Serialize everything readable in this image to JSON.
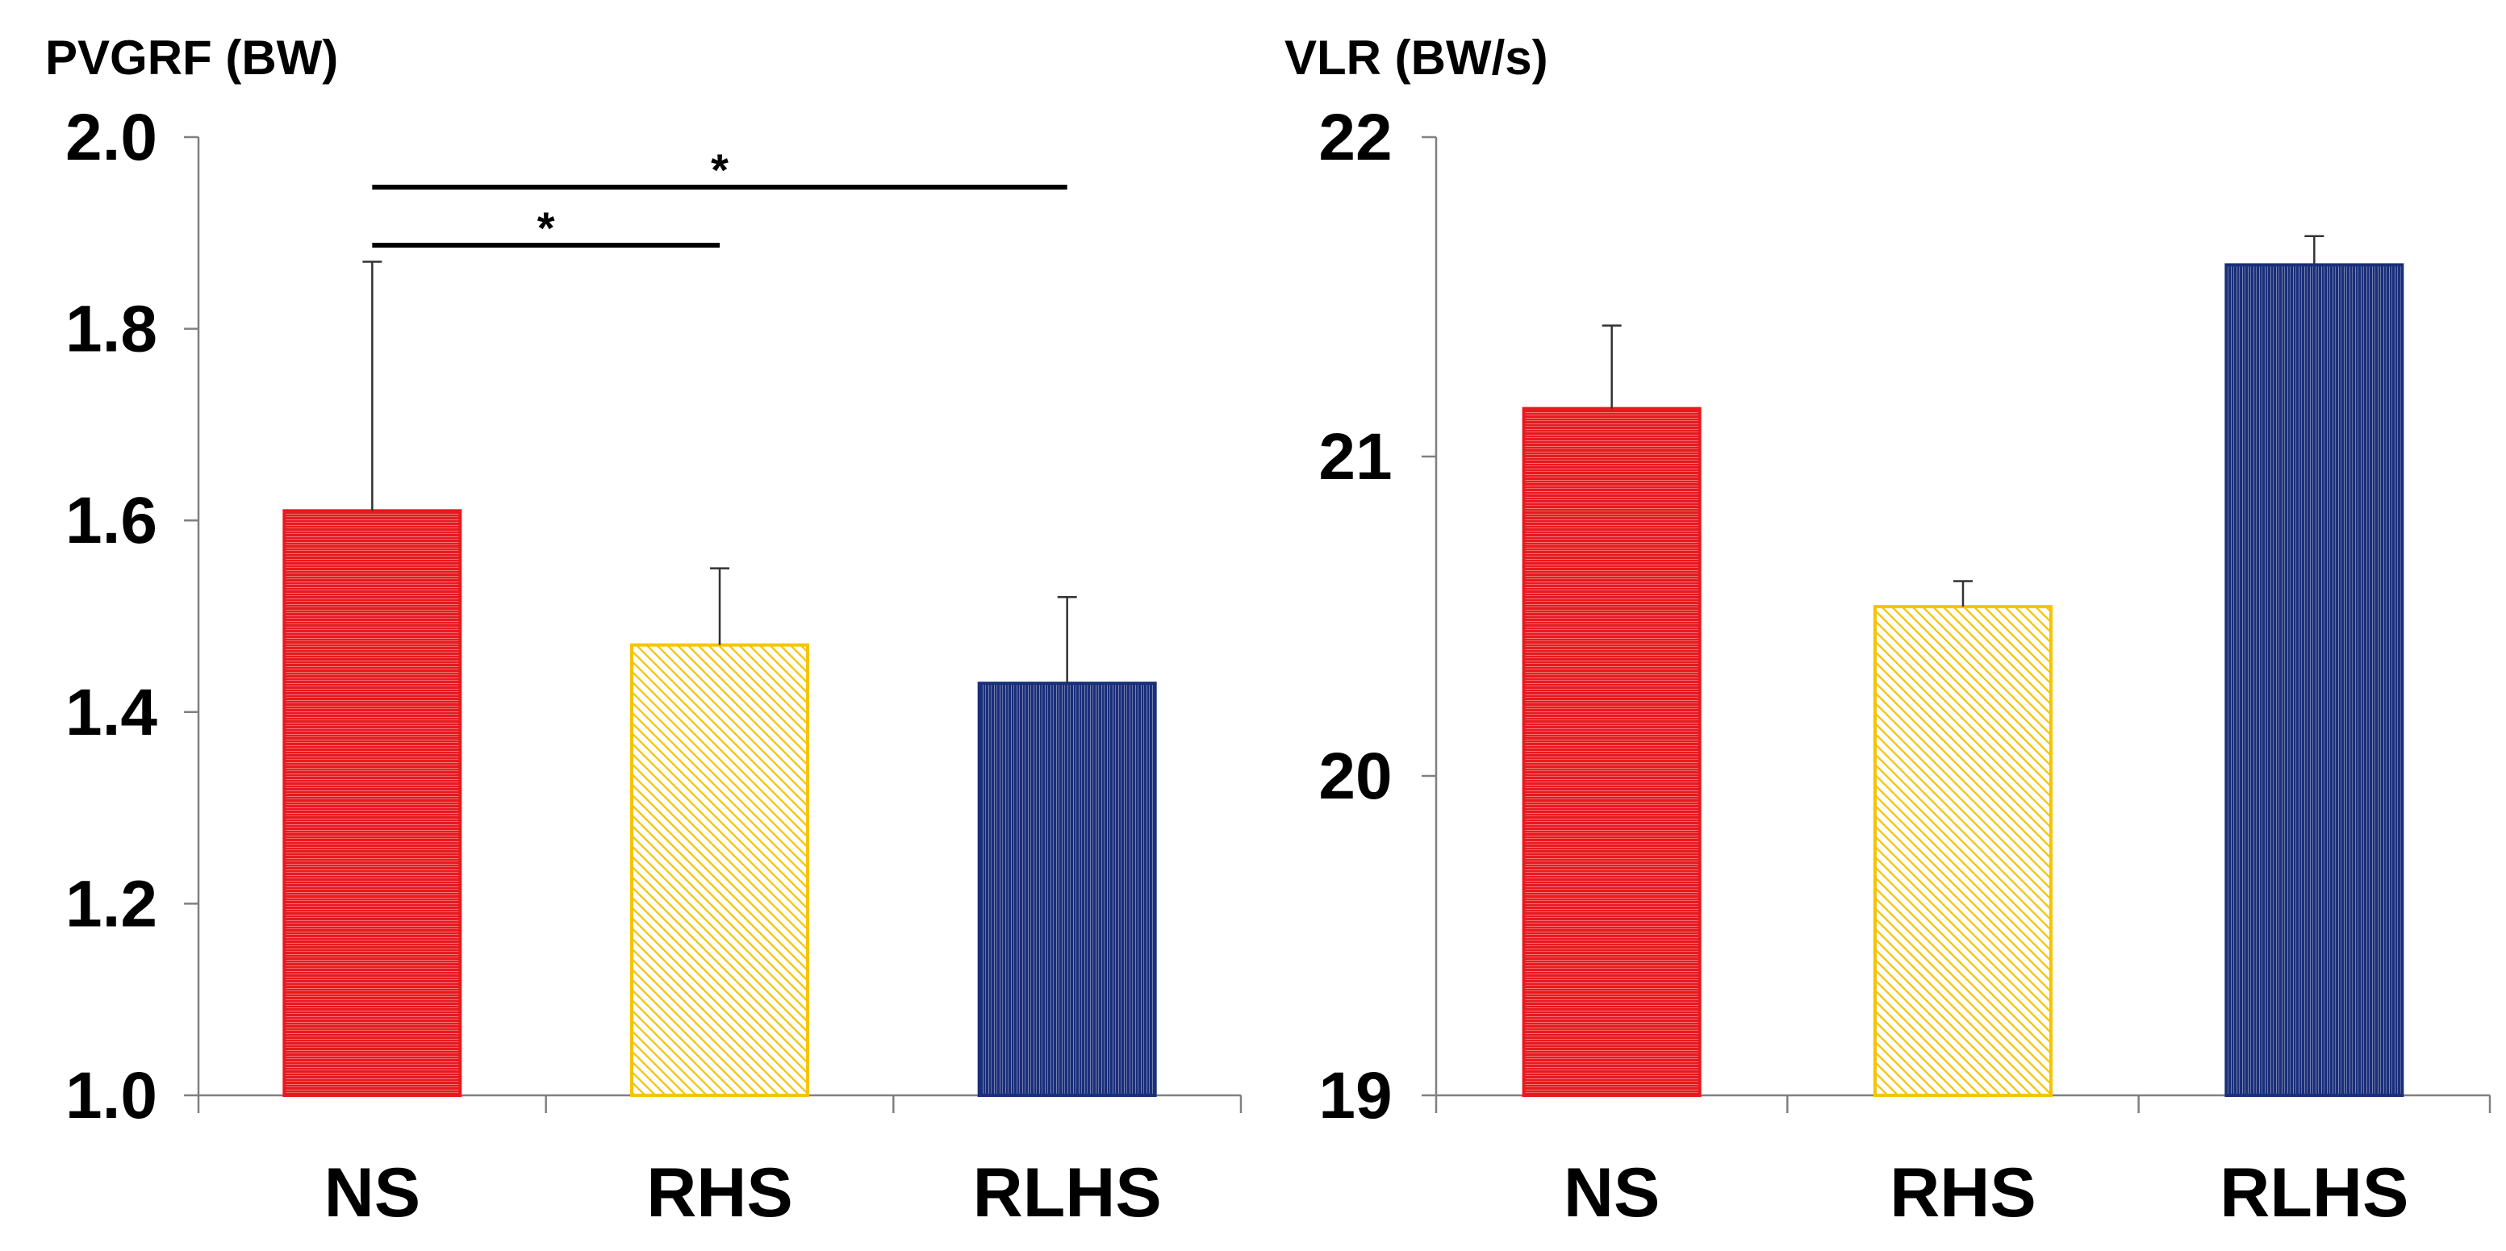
{
  "chart_data": [
    {
      "type": "bar",
      "title": "PVGRF (BW)",
      "categories": [
        "NS",
        "RHS",
        "RLHS"
      ],
      "values": [
        1.61,
        1.47,
        1.43
      ],
      "errors": [
        0.26,
        0.08,
        0.09
      ],
      "ylim": [
        1.0,
        2.0
      ],
      "yticks": [
        "1.0",
        "1.2",
        "1.4",
        "1.6",
        "1.8",
        "2.0"
      ],
      "colors": [
        "#e8191f",
        "#f5c400",
        "#1a2f7a"
      ],
      "patterns": [
        "horizontal",
        "diagonal",
        "vertical"
      ],
      "significance": [
        {
          "from": 0,
          "to": 1,
          "label": "*"
        },
        {
          "from": 0,
          "to": 2,
          "label": "*"
        }
      ]
    },
    {
      "type": "bar",
      "title": "VLR (BW/s)",
      "categories": [
        "NS",
        "RHS",
        "RLHS"
      ],
      "values": [
        21.15,
        20.53,
        21.6
      ],
      "errors": [
        0.26,
        0.08,
        0.09
      ],
      "ylim": [
        19,
        22
      ],
      "yticks": [
        "19",
        "20",
        "21",
        "22"
      ],
      "colors": [
        "#e8191f",
        "#f5c400",
        "#1a2f7a"
      ],
      "patterns": [
        "horizontal",
        "diagonal",
        "vertical"
      ],
      "significance": []
    }
  ]
}
